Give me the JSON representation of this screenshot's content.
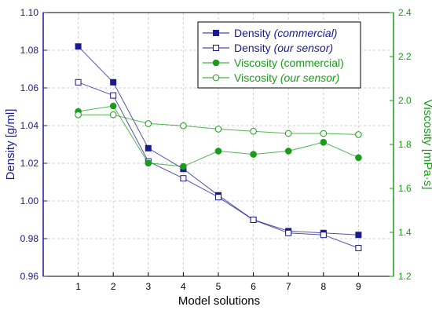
{
  "chart_data": {
    "type": "line",
    "x": [
      1,
      2,
      3,
      4,
      5,
      6,
      7,
      8,
      9
    ],
    "xlabel": "Model solutions",
    "xlim": [
      0,
      10
    ],
    "left_axis": {
      "label": "Density [g/ml]",
      "ylim": [
        0.96,
        1.1
      ],
      "ticks": [
        "0.96",
        "0.98",
        "1.00",
        "1.02",
        "1.04",
        "1.06",
        "1.08",
        "1.10"
      ],
      "color": "#1a1a8c"
    },
    "right_axis": {
      "label": "Viscosity [mPa·s]",
      "ylim": [
        1.2,
        2.4
      ],
      "ticks": [
        "1.2",
        "1.4",
        "1.6",
        "1.8",
        "2.0",
        "2.2",
        "2.4"
      ],
      "color": "#1a9c1a"
    },
    "grid": true,
    "legend_position": "top-right",
    "series": [
      {
        "name_main": "Density ",
        "name_ital": "(commercial)",
        "axis": "left",
        "color": "#1a1a8c",
        "marker": "square-filled",
        "values": [
          1.082,
          1.063,
          1.028,
          1.017,
          1.003,
          0.99,
          0.984,
          0.983,
          0.982
        ]
      },
      {
        "name_main": "Density ",
        "name_ital": "(our sensor)",
        "axis": "left",
        "color": "#1a1a8c",
        "marker": "square-open",
        "values": [
          1.063,
          1.056,
          1.021,
          1.012,
          1.002,
          0.99,
          0.983,
          0.982,
          0.975
        ]
      },
      {
        "name_main": "Viscosity (commercial)",
        "name_ital": "",
        "axis": "right",
        "color": "#1a9c1a",
        "marker": "circle-filled",
        "values": [
          1.95,
          1.975,
          1.715,
          1.7,
          1.77,
          1.755,
          1.77,
          1.81,
          1.74
        ]
      },
      {
        "name_main": "Viscosity ",
        "name_ital": "(our sensor)",
        "axis": "right",
        "color": "#1a9c1a",
        "marker": "circle-open",
        "values": [
          1.935,
          1.935,
          1.895,
          1.885,
          1.87,
          1.86,
          1.85,
          1.85,
          1.845
        ]
      }
    ]
  }
}
